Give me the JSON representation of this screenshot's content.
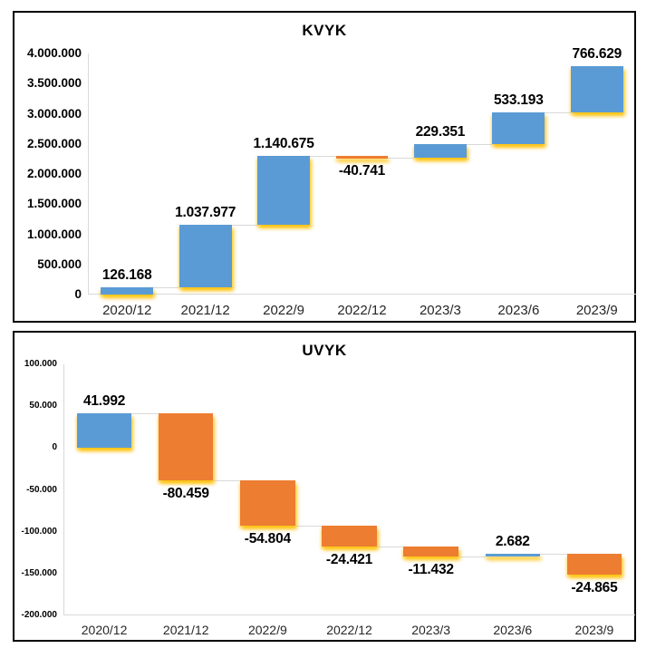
{
  "window": {
    "background": "#FFFFFF"
  },
  "colors": {
    "increase_bar": "#5B9BD5",
    "decrease_bar": "#ED7D31",
    "glow": "#FFC000",
    "connector": "#D9D9D9",
    "axis_line": "#D9D9D9",
    "value_text": "#000000",
    "category_text": "#262626",
    "panel_border": "#000000"
  },
  "chart_data": [
    {
      "id": "kvyk",
      "type": "waterfall",
      "title": "KVYK",
      "categories": [
        "2020/12",
        "2021/12",
        "2022/9",
        "2022/12",
        "2023/3",
        "2023/6",
        "2023/9"
      ],
      "values": [
        126168,
        1037977,
        1140675,
        -40741,
        229351,
        533193,
        766629
      ],
      "value_labels": [
        "126.168",
        "1.037.977",
        "1.140.675",
        "-40.741",
        "229.351",
        "533.193",
        "766.629"
      ],
      "cumulative": [
        126168,
        1164145,
        2304820,
        2264079,
        2493430,
        3026623,
        3793252
      ],
      "ylim": [
        0,
        4000000
      ],
      "y_ticks": [
        {
          "v": 4000000,
          "label": "4.000.000"
        },
        {
          "v": 3500000,
          "label": "3.500.000"
        },
        {
          "v": 3000000,
          "label": "3.000.000"
        },
        {
          "v": 2500000,
          "label": "2.500.000"
        },
        {
          "v": 2000000,
          "label": "2.000.000"
        },
        {
          "v": 1500000,
          "label": "1.500.000"
        },
        {
          "v": 1000000,
          "label": "1.000.000"
        },
        {
          "v": 500000,
          "label": "500.000"
        },
        {
          "v": 0,
          "label": "0"
        }
      ],
      "gridlines": false,
      "legend": null
    },
    {
      "id": "uvyk",
      "type": "waterfall",
      "title": "UVYK",
      "categories": [
        "2020/12",
        "2021/12",
        "2022/9",
        "2022/12",
        "2023/3",
        "2023/6",
        "2023/9"
      ],
      "values": [
        41992,
        -80459,
        -54804,
        -24421,
        -11432,
        2682,
        -24865
      ],
      "value_labels": [
        "41.992",
        "-80.459",
        "-54.804",
        "-24.421",
        "-11.432",
        "2.682",
        "-24.865"
      ],
      "cumulative": [
        41992,
        -38467,
        -93271,
        -117692,
        -129124,
        -126442,
        -151307
      ],
      "ylim": [
        -200000,
        100000
      ],
      "y_ticks": [
        {
          "v": 100000,
          "label": "100.000"
        },
        {
          "v": 50000,
          "label": "50.000"
        },
        {
          "v": 0,
          "label": "0"
        },
        {
          "v": -50000,
          "label": "-50.000"
        },
        {
          "v": -100000,
          "label": "-100.000"
        },
        {
          "v": -150000,
          "label": "-150.000"
        },
        {
          "v": -200000,
          "label": "-200.000"
        }
      ],
      "gridlines": false,
      "legend": null
    }
  ]
}
